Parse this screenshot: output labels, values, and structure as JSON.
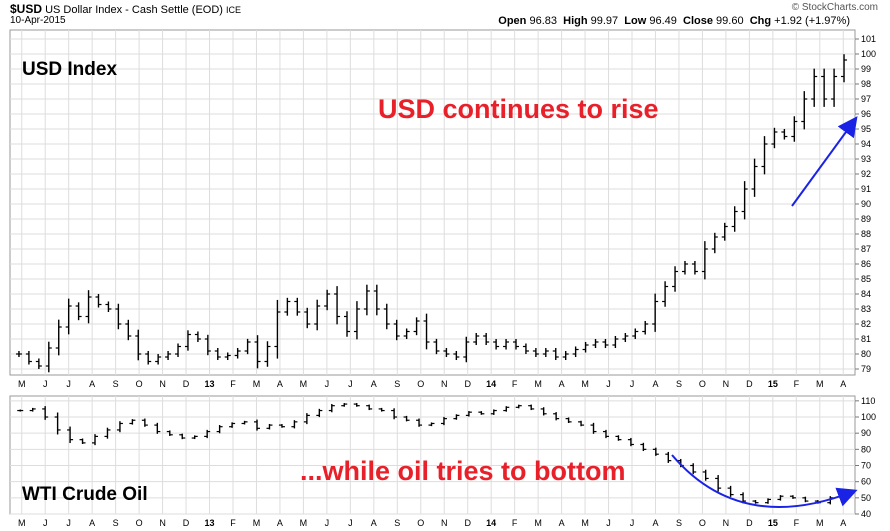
{
  "header": {
    "symbol": "$USD",
    "name": "US Dollar Index - Cash Settle (EOD)",
    "exchange": "ICE",
    "date": "10-Apr-2015",
    "open_label": "Open",
    "open": "96.83",
    "high_label": "High",
    "high": "99.97",
    "low_label": "Low",
    "low": "96.49",
    "close_label": "Close",
    "close": "99.60",
    "chg_label": "Chg",
    "chg": "+1.92 (+1.97%)",
    "source": "© StockCharts.com"
  },
  "colors": {
    "annotation": "#e8202a",
    "arrow": "#1a22e6",
    "bars": "#000000",
    "grid": "#dddddd"
  },
  "chart_data": [
    {
      "type": "line",
      "title": "USD Index",
      "annotation": "USD continues to rise",
      "x_ticks": [
        "M",
        "J",
        "J",
        "A",
        "S",
        "O",
        "N",
        "D",
        "13",
        "F",
        "M",
        "A",
        "M",
        "J",
        "J",
        "A",
        "S",
        "O",
        "N",
        "D",
        "14",
        "F",
        "M",
        "A",
        "M",
        "J",
        "J",
        "A",
        "S",
        "O",
        "N",
        "D",
        "15",
        "F",
        "M",
        "A"
      ],
      "y_ticks": [
        79,
        80,
        81,
        82,
        83,
        84,
        85,
        86,
        87,
        88,
        89,
        90,
        91,
        92,
        93,
        94,
        95,
        96,
        97,
        98,
        99,
        100,
        101
      ],
      "ylim": [
        78.6,
        101.6
      ],
      "series": [
        {
          "values": [
            80.0,
            79.5,
            79.2,
            80.4,
            81.8,
            83.2,
            82.5,
            83.8,
            83.3,
            83.0,
            82.0,
            81.2,
            80.0,
            79.5,
            79.8,
            80.0,
            80.5,
            81.3,
            81.0,
            80.2,
            79.8,
            79.9,
            80.2,
            80.8,
            79.5,
            80.5,
            82.8,
            83.5,
            82.8,
            82.0,
            83.2,
            84.0,
            82.5,
            81.5,
            83.0,
            84.2,
            83.0,
            82.0,
            81.2,
            81.5,
            82.2,
            80.8,
            80.2,
            80.0,
            79.8,
            80.8,
            81.2,
            80.8,
            80.5,
            80.8,
            80.5,
            80.2,
            80.0,
            80.2,
            79.8,
            80.0,
            80.3,
            80.6,
            80.8,
            80.6,
            81.0,
            81.2,
            81.5,
            82.0,
            83.5,
            84.5,
            85.5,
            86.0,
            85.5,
            87.0,
            87.8,
            88.5,
            89.5,
            91.0,
            92.5,
            94.0,
            94.8,
            94.5,
            95.5,
            97.0,
            98.5,
            97.0,
            98.5,
            99.6
          ]
        }
      ]
    },
    {
      "type": "line",
      "title": "WTI Crude Oil",
      "annotation": "...while oil tries to bottom",
      "x_ticks": [
        "M",
        "J",
        "J",
        "A",
        "S",
        "O",
        "N",
        "D",
        "13",
        "F",
        "M",
        "A",
        "M",
        "J",
        "J",
        "A",
        "S",
        "O",
        "N",
        "D",
        "14",
        "F",
        "M",
        "A",
        "M",
        "J",
        "J",
        "A",
        "S",
        "O",
        "N",
        "D",
        "15",
        "F",
        "M",
        "A"
      ],
      "y_ticks": [
        40,
        50,
        60,
        70,
        80,
        90,
        100,
        110
      ],
      "ylim": [
        40,
        113
      ],
      "series": [
        {
          "values": [
            104,
            105,
            100,
            92,
            86,
            84,
            88,
            92,
            96,
            98,
            95,
            91,
            89,
            87,
            88,
            91,
            94,
            96,
            97,
            93,
            95,
            94,
            97,
            101,
            104,
            107,
            108,
            107,
            105,
            104,
            100,
            98,
            95,
            96,
            99,
            101,
            103,
            102,
            104,
            106,
            107,
            105,
            102,
            99,
            97,
            95,
            91,
            88,
            86,
            83,
            80,
            77,
            73,
            70,
            66,
            62,
            56,
            52,
            48,
            47,
            49,
            51,
            50,
            48,
            47,
            50,
            52
          ]
        }
      ]
    }
  ]
}
